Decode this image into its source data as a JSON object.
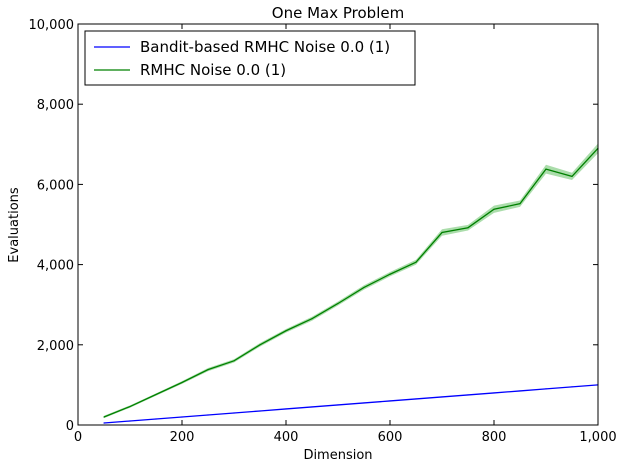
{
  "chart_data": {
    "type": "line",
    "title": "One Max Problem",
    "xlabel": "Dimension",
    "ylabel": "Evaluations",
    "xlim": [
      0,
      1000
    ],
    "ylim": [
      0,
      10000
    ],
    "x_ticks": [
      0,
      200,
      400,
      600,
      800,
      1000
    ],
    "x_tick_labels": [
      "0",
      "200",
      "400",
      "600",
      "800",
      "1,000"
    ],
    "y_ticks": [
      0,
      2000,
      4000,
      6000,
      8000,
      10000
    ],
    "y_tick_labels": [
      "0",
      "2,000",
      "4,000",
      "6,000",
      "8,000",
      "10,000"
    ],
    "grid": false,
    "legend_position": "top-left",
    "x": [
      50,
      100,
      150,
      200,
      250,
      300,
      350,
      400,
      450,
      500,
      550,
      600,
      650,
      700,
      750,
      800,
      850,
      900,
      950,
      1000
    ],
    "series": [
      {
        "name": "Bandit-based RMHC Noise 0.0 (1)",
        "color": "#0000ff",
        "values": [
          50,
          100,
          150,
          200,
          250,
          300,
          350,
          400,
          450,
          500,
          550,
          600,
          650,
          700,
          750,
          800,
          850,
          900,
          950,
          1000
        ]
      },
      {
        "name": "RMHC Noise 0.0 (1)",
        "color": "#008000",
        "band_color": "#8fd18f",
        "values": [
          200,
          460,
          760,
          1060,
          1380,
          1600,
          2000,
          2350,
          2650,
          3030,
          3430,
          3760,
          4060,
          4800,
          4920,
          5380,
          5520,
          6380,
          6200,
          6900
        ],
        "band_halfwidth": [
          30,
          30,
          30,
          35,
          40,
          40,
          45,
          45,
          50,
          50,
          55,
          55,
          60,
          80,
          70,
          90,
          80,
          110,
          90,
          120
        ]
      }
    ]
  }
}
